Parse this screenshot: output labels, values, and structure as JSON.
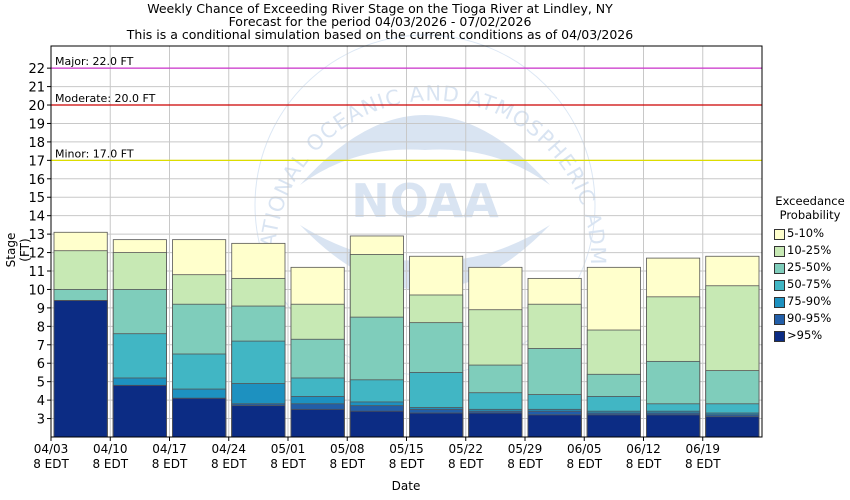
{
  "chart_data": {
    "type": "bar",
    "title": [
      "Weekly Chance of Exceeding River Stage on the Tioga River at Lindley, NY",
      "Forecast for the period 04/03/2026 - 07/02/2026",
      "This is a conditional simulation based on the current conditions as of 04/03/2026"
    ],
    "xlabel": "Date",
    "ylabel": "Stage (FT)",
    "ylim": [
      2.0,
      23.2
    ],
    "y_ticks": [
      3,
      4,
      5,
      6,
      7,
      8,
      9,
      10,
      11,
      12,
      13,
      14,
      15,
      16,
      17,
      18,
      19,
      20,
      21,
      22
    ],
    "x_ticks": [
      {
        "date": "04/03",
        "time": "8 EDT"
      },
      {
        "date": "04/10",
        "time": "8 EDT"
      },
      {
        "date": "04/17",
        "time": "8 EDT"
      },
      {
        "date": "04/24",
        "time": "8 EDT"
      },
      {
        "date": "05/01",
        "time": "8 EDT"
      },
      {
        "date": "05/08",
        "time": "8 EDT"
      },
      {
        "date": "05/15",
        "time": "8 EDT"
      },
      {
        "date": "05/22",
        "time": "8 EDT"
      },
      {
        "date": "05/29",
        "time": "8 EDT"
      },
      {
        "date": "06/05",
        "time": "8 EDT"
      },
      {
        "date": "06/12",
        "time": "8 EDT"
      },
      {
        "date": "06/19",
        "time": "8 EDT"
      }
    ],
    "grid": true,
    "thresholds": [
      {
        "label": "Major: 22.0 FT",
        "value": 22.0,
        "color": "#cc33cc"
      },
      {
        "label": "Moderate: 20.0 FT",
        "value": 20.0,
        "color": "#cc0000"
      },
      {
        "label": "Minor: 17.0 FT",
        "value": 17.0,
        "color": "#dddd00"
      }
    ],
    "legend": {
      "title": [
        "Exceedance",
        "Probability"
      ],
      "placement": "right",
      "items": [
        {
          "label": "5-10%",
          "color": "#ffffcc"
        },
        {
          "label": "10-25%",
          "color": "#c7e9b4"
        },
        {
          "label": "25-50%",
          "color": "#7fcdbb"
        },
        {
          "label": "50-75%",
          "color": "#41b6c4"
        },
        {
          "label": "75-90%",
          "color": "#1d91c0"
        },
        {
          "label": "90-95%",
          "color": "#225ea8"
        },
        {
          "label": ">95%",
          "color": "#0c2c84"
        }
      ]
    },
    "weeks": [
      {
        "start": "04/03",
        "levels": [
          9.4,
          9.4,
          9.4,
          9.4,
          10.0,
          12.1,
          13.1
        ]
      },
      {
        "start": "04/10",
        "levels": [
          4.8,
          4.8,
          5.2,
          7.6,
          10.0,
          12.0,
          12.7
        ]
      },
      {
        "start": "04/17",
        "levels": [
          4.1,
          4.1,
          4.6,
          6.5,
          9.2,
          10.8,
          12.7
        ]
      },
      {
        "start": "04/24",
        "levels": [
          3.7,
          3.8,
          4.9,
          7.2,
          9.1,
          10.6,
          12.5
        ]
      },
      {
        "start": "05/01",
        "levels": [
          3.5,
          3.8,
          4.2,
          5.2,
          7.3,
          9.2,
          11.2
        ]
      },
      {
        "start": "05/08",
        "levels": [
          3.4,
          3.7,
          3.9,
          5.1,
          8.5,
          11.9,
          12.9
        ]
      },
      {
        "start": "05/15",
        "levels": [
          3.3,
          3.5,
          3.6,
          5.5,
          8.2,
          9.7,
          11.8
        ]
      },
      {
        "start": "05/22",
        "levels": [
          3.3,
          3.4,
          3.5,
          4.4,
          5.9,
          8.9,
          11.2
        ]
      },
      {
        "start": "05/29",
        "levels": [
          3.2,
          3.4,
          3.5,
          4.3,
          6.8,
          9.2,
          10.6
        ]
      },
      {
        "start": "06/05",
        "levels": [
          3.2,
          3.3,
          3.4,
          4.2,
          5.4,
          7.8,
          11.2
        ]
      },
      {
        "start": "06/12",
        "levels": [
          3.2,
          3.3,
          3.4,
          3.8,
          6.1,
          9.6,
          11.7
        ]
      },
      {
        "start": "06/19",
        "levels": [
          3.1,
          3.2,
          3.3,
          3.8,
          5.6,
          10.2,
          11.8
        ]
      }
    ],
    "watermark": {
      "text": "NOAA",
      "ring_text": "NATIONAL OCEANIC AND ATMOSPHERIC ADMINISTRATION"
    }
  }
}
